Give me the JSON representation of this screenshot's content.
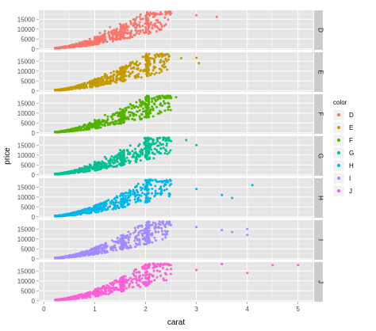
{
  "chart_data": {
    "type": "scatter",
    "faceted": true,
    "facet_by": "color",
    "facet_layout": "rows",
    "xlabel": "carat",
    "ylabel": "price",
    "x_ticks": [
      "0",
      "1",
      "2",
      "3",
      "4",
      "5"
    ],
    "y_ticks": [
      "0",
      "5000",
      "10000",
      "15000"
    ],
    "xlim": [
      -0.1,
      5.3
    ],
    "ylim": [
      -500,
      19500
    ],
    "grid": true,
    "legend": {
      "title": "color",
      "position": "right",
      "entries": [
        "D",
        "E",
        "F",
        "G",
        "H",
        "I",
        "J"
      ]
    },
    "series": [
      {
        "name": "D",
        "color": "#F8766D",
        "points": [
          [
            0.25,
            400
          ],
          [
            0.3,
            600
          ],
          [
            0.4,
            900
          ],
          [
            0.5,
            1500
          ],
          [
            0.6,
            2200
          ],
          [
            0.7,
            3200
          ],
          [
            0.8,
            4000
          ],
          [
            0.9,
            5000
          ],
          [
            1.0,
            6000
          ],
          [
            1.0,
            4500
          ],
          [
            1.1,
            8000
          ],
          [
            1.2,
            9000
          ],
          [
            1.3,
            11000
          ],
          [
            1.5,
            12500
          ],
          [
            1.7,
            14000
          ],
          [
            2.0,
            16500
          ],
          [
            2.2,
            18000
          ],
          [
            2.5,
            18000
          ],
          [
            3.0,
            17000
          ],
          [
            3.4,
            16200
          ]
        ],
        "max_carat": 3.4
      },
      {
        "name": "E",
        "color": "#C49A00",
        "points": [
          [
            0.25,
            350
          ],
          [
            0.3,
            500
          ],
          [
            0.4,
            900
          ],
          [
            0.5,
            1400
          ],
          [
            0.6,
            2000
          ],
          [
            0.7,
            3000
          ],
          [
            0.8,
            4000
          ],
          [
            0.9,
            4800
          ],
          [
            1.0,
            6000
          ],
          [
            1.0,
            4000
          ],
          [
            1.2,
            8500
          ],
          [
            1.5,
            11500
          ],
          [
            1.7,
            13500
          ],
          [
            2.0,
            16000
          ],
          [
            2.3,
            15500
          ],
          [
            2.7,
            16500
          ],
          [
            3.0,
            16700
          ],
          [
            3.05,
            14000
          ]
        ],
        "max_carat": 3.05
      },
      {
        "name": "F",
        "color": "#53B400",
        "points": [
          [
            0.25,
            380
          ],
          [
            0.3,
            550
          ],
          [
            0.4,
            950
          ],
          [
            0.5,
            1500
          ],
          [
            0.6,
            2200
          ],
          [
            0.7,
            3200
          ],
          [
            0.8,
            4200
          ],
          [
            0.9,
            5000
          ],
          [
            1.0,
            6500
          ],
          [
            1.0,
            4500
          ],
          [
            1.2,
            9000
          ],
          [
            1.5,
            12000
          ],
          [
            1.7,
            14500
          ],
          [
            2.0,
            17000
          ],
          [
            2.2,
            16000
          ],
          [
            2.5,
            17500
          ],
          [
            2.6,
            18000
          ]
        ],
        "max_carat": 2.6
      },
      {
        "name": "G",
        "color": "#00C094",
        "points": [
          [
            0.25,
            400
          ],
          [
            0.3,
            600
          ],
          [
            0.4,
            1000
          ],
          [
            0.5,
            1600
          ],
          [
            0.6,
            2300
          ],
          [
            0.7,
            3300
          ],
          [
            0.8,
            4300
          ],
          [
            0.9,
            5200
          ],
          [
            1.0,
            6500
          ],
          [
            1.0,
            4200
          ],
          [
            1.2,
            9000
          ],
          [
            1.5,
            12500
          ],
          [
            1.7,
            14800
          ],
          [
            2.0,
            17500
          ],
          [
            2.2,
            16000
          ],
          [
            2.5,
            17000
          ],
          [
            2.8,
            17500
          ],
          [
            3.0,
            15000
          ]
        ],
        "max_carat": 3.0
      },
      {
        "name": "H",
        "color": "#00B6EB",
        "points": [
          [
            0.25,
            380
          ],
          [
            0.3,
            500
          ],
          [
            0.4,
            900
          ],
          [
            0.5,
            1400
          ],
          [
            0.6,
            2000
          ],
          [
            0.7,
            2900
          ],
          [
            0.8,
            3800
          ],
          [
            0.9,
            4500
          ],
          [
            1.0,
            5500
          ],
          [
            1.0,
            3800
          ],
          [
            1.2,
            7500
          ],
          [
            1.5,
            10500
          ],
          [
            1.7,
            13000
          ],
          [
            2.0,
            15500
          ],
          [
            2.5,
            16500
          ],
          [
            3.0,
            14000
          ],
          [
            3.5,
            11000
          ],
          [
            3.7,
            9500
          ],
          [
            4.1,
            16000
          ]
        ],
        "max_carat": 4.13
      },
      {
        "name": "I",
        "color": "#A58AFF",
        "points": [
          [
            0.25,
            350
          ],
          [
            0.3,
            500
          ],
          [
            0.4,
            850
          ],
          [
            0.5,
            1300
          ],
          [
            0.6,
            1900
          ],
          [
            0.7,
            2700
          ],
          [
            0.8,
            3500
          ],
          [
            0.9,
            4200
          ],
          [
            1.0,
            5200
          ],
          [
            1.0,
            3500
          ],
          [
            1.2,
            7000
          ],
          [
            1.5,
            10000
          ],
          [
            1.7,
            12500
          ],
          [
            2.0,
            15000
          ],
          [
            2.5,
            17000
          ],
          [
            3.0,
            16000
          ],
          [
            3.5,
            14500
          ],
          [
            3.7,
            13500
          ],
          [
            4.0,
            15000
          ],
          [
            4.0,
            12000
          ]
        ],
        "max_carat": 4.01
      },
      {
        "name": "J",
        "color": "#FB61D7",
        "points": [
          [
            0.25,
            330
          ],
          [
            0.3,
            450
          ],
          [
            0.4,
            800
          ],
          [
            0.5,
            1200
          ],
          [
            0.6,
            1700
          ],
          [
            0.7,
            2500
          ],
          [
            0.8,
            3200
          ],
          [
            0.9,
            3900
          ],
          [
            1.0,
            4800
          ],
          [
            1.0,
            3300
          ],
          [
            1.2,
            6500
          ],
          [
            1.5,
            9500
          ],
          [
            1.7,
            11500
          ],
          [
            2.0,
            14000
          ],
          [
            2.5,
            16000
          ],
          [
            3.0,
            15500
          ],
          [
            3.5,
            18500
          ],
          [
            4.0,
            14000
          ],
          [
            4.5,
            18000
          ],
          [
            5.0,
            18000
          ]
        ],
        "max_carat": 5.01
      }
    ]
  }
}
